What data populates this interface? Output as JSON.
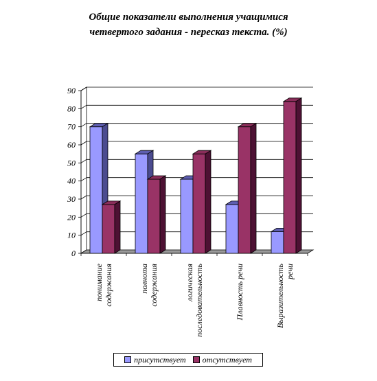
{
  "title_lines": [
    "Общие показатели выполнения учащимися",
    "четвертого задания - пересказ текста.  (%)"
  ],
  "chart_data": {
    "type": "bar",
    "title": "Общие показатели выполнения учащимися четвертого задания - пересказ текста.  (%)",
    "categories": [
      [
        "понимание",
        "содержания"
      ],
      [
        "полнота",
        "содержания"
      ],
      [
        "логическая",
        "последовательность"
      ],
      [
        "Плавность речи"
      ],
      [
        "Выразительность",
        "речи"
      ]
    ],
    "series": [
      {
        "name": "присутствует",
        "values": [
          70,
          55,
          41,
          27,
          12
        ],
        "color": "#9999ff",
        "top_color": "#5e5eb0",
        "side_color": "#4b4b8f"
      },
      {
        "name": "отсутствует",
        "values": [
          27,
          41,
          55,
          70,
          84
        ],
        "color": "#993366",
        "top_color": "#8a2d5a",
        "side_color": "#4d1133"
      }
    ],
    "y_ticks": [
      "0",
      "10",
      "20",
      "30",
      "40",
      "50",
      "60",
      "70",
      "80",
      "90"
    ],
    "ylim": [
      0,
      90
    ],
    "grid": true,
    "legend": "bottom"
  }
}
